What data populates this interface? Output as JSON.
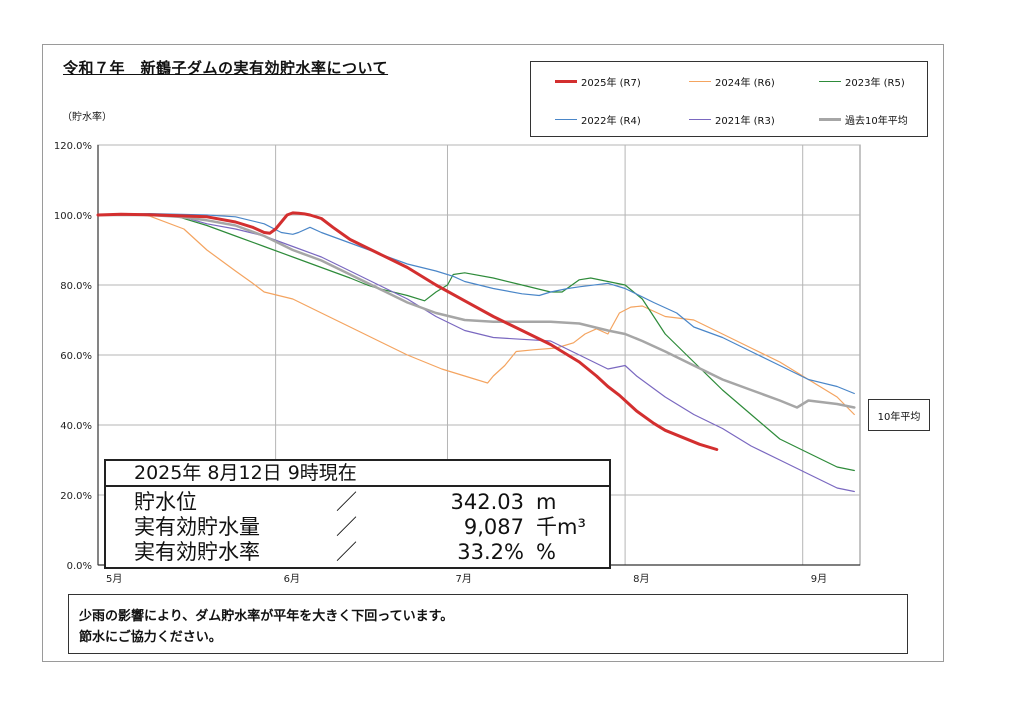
{
  "title": "令和７年　新鶴子ダムの実有効貯水率について",
  "y_unit_label": "（貯水率）",
  "legend": [
    {
      "label": "2025年 (R7)",
      "color": "#d32f2f",
      "width": 3
    },
    {
      "label": "2024年 (R6)",
      "color": "#f4a460",
      "width": 1.2
    },
    {
      "label": "2023年 (R5)",
      "color": "#2e8b3a",
      "width": 1.2
    },
    {
      "label": "2022年 (R4)",
      "color": "#4a86c8",
      "width": 1.2
    },
    {
      "label": "2021年 (R3)",
      "color": "#7a68c0",
      "width": 1.2
    },
    {
      "label": "過去10年平均",
      "color": "#a6a6a6",
      "width": 2.5
    }
  ],
  "avg_label": "10年平均",
  "info": {
    "date": "2025年 8月12日 9時現在",
    "rows": [
      {
        "key": "貯水位",
        "sep": "／",
        "value": "342.03",
        "unit": "m"
      },
      {
        "key": "実有効貯水量",
        "sep": "／",
        "value": "9,087",
        "unit": "千m³"
      },
      {
        "key": "実有効貯水率",
        "sep": "／",
        "value": "33.2%",
        "unit": "%"
      }
    ]
  },
  "note": [
    "少雨の影響により、ダム貯水率が平年を大きく下回っています。",
    "節水にご協力ください。"
  ],
  "chart_data": {
    "type": "line",
    "x_unit": "day of year",
    "xlim": [
      121,
      254
    ],
    "ylim": [
      0,
      120
    ],
    "yticks": [
      0,
      20,
      40,
      60,
      80,
      100,
      120
    ],
    "ytick_labels": [
      "0.0%",
      "20.0%",
      "40.0%",
      "60.0%",
      "80.0%",
      "100.0%",
      "120.0%"
    ],
    "xticks": [
      {
        "x": 121,
        "label": "5月"
      },
      {
        "x": 152,
        "label": "6月"
      },
      {
        "x": 182,
        "label": "7月"
      },
      {
        "x": 213,
        "label": "8月"
      },
      {
        "x": 244,
        "label": "9月"
      }
    ],
    "grid": true,
    "series": [
      {
        "name": "2024年 (R6)",
        "color": "#f4a460",
        "width": 1.2,
        "x": [
          121,
          127,
          130,
          136,
          140,
          145,
          148,
          150,
          155,
          160,
          165,
          170,
          175,
          178,
          181,
          185,
          187,
          189,
          190,
          192,
          194,
          197,
          201,
          204,
          206,
          208,
          210,
          212,
          214,
          216,
          220,
          225,
          230,
          235,
          240,
          245,
          250,
          253
        ],
        "y": [
          100,
          100.3,
          99.7,
          96,
          90,
          84,
          80.5,
          78,
          76,
          72,
          68,
          64,
          60,
          58,
          56,
          54,
          53,
          52,
          54,
          57,
          61,
          61.5,
          62,
          63.5,
          66,
          67.5,
          66,
          72,
          73.7,
          74,
          71,
          70,
          66,
          62,
          58,
          53,
          48,
          43
        ]
      },
      {
        "name": "2023年 (R5)",
        "color": "#2e8b3a",
        "width": 1.2,
        "x": [
          121,
          125,
          130,
          135,
          140,
          145,
          150,
          155,
          160,
          165,
          168,
          170,
          175,
          178,
          180,
          182,
          183,
          185,
          190,
          195,
          200,
          202,
          205,
          207,
          210,
          213,
          216,
          220,
          225,
          230,
          235,
          240,
          245,
          250,
          253
        ],
        "y": [
          100,
          100.3,
          100,
          99.5,
          97,
          94,
          91,
          88,
          85,
          82,
          80,
          79,
          77,
          75.5,
          78,
          80,
          83,
          83.5,
          82,
          80,
          78,
          78,
          81.5,
          82,
          81,
          80,
          76,
          66,
          58,
          50,
          43,
          36,
          32,
          28,
          27
        ]
      },
      {
        "name": "2022年 (R4)",
        "color": "#4a86c8",
        "width": 1.2,
        "x": [
          121,
          130,
          140,
          145,
          150,
          153,
          155,
          156,
          158,
          160,
          165,
          170,
          175,
          180,
          183,
          185,
          190,
          195,
          198,
          200,
          203,
          205,
          210,
          213,
          218,
          222,
          225,
          230,
          235,
          240,
          245,
          250,
          253
        ],
        "y": [
          100,
          100.4,
          100,
          99.5,
          97.5,
          95,
          94.5,
          95,
          96.5,
          95,
          92,
          89,
          86,
          84,
          82.5,
          81,
          79,
          77.5,
          77,
          78,
          79,
          79.5,
          80.5,
          79,
          75,
          72,
          68,
          65,
          61,
          57,
          53,
          51,
          49
        ]
      },
      {
        "name": "2021年 (R3)",
        "color": "#7a68c0",
        "width": 1.2,
        "x": [
          121,
          130,
          135,
          140,
          145,
          150,
          155,
          160,
          165,
          170,
          175,
          180,
          185,
          190,
          195,
          200,
          205,
          210,
          213,
          215,
          220,
          225,
          230,
          235,
          240,
          245,
          250,
          253
        ],
        "y": [
          100,
          100.2,
          99.8,
          97.5,
          96,
          94,
          91,
          88,
          84,
          80,
          76,
          71,
          67,
          65,
          64.5,
          64,
          60,
          56,
          57,
          54,
          48,
          43,
          39,
          34,
          30,
          26,
          22,
          21
        ]
      },
      {
        "name": "過去10年平均",
        "color": "#a6a6a6",
        "width": 2.5,
        "x": [
          121,
          130,
          135,
          140,
          145,
          150,
          155,
          160,
          165,
          170,
          175,
          180,
          185,
          190,
          195,
          200,
          205,
          210,
          213,
          216,
          220,
          225,
          230,
          235,
          240,
          243,
          245,
          250,
          253
        ],
        "y": [
          100,
          100,
          99.5,
          98.5,
          97,
          94,
          90,
          87,
          83,
          79,
          75,
          72,
          70,
          69.5,
          69.5,
          69.5,
          69,
          67,
          66,
          64,
          61,
          57,
          53,
          50,
          47,
          45,
          47,
          46,
          45
        ]
      },
      {
        "name": "2025年 (R7)",
        "color": "#d32f2f",
        "width": 3,
        "x": [
          121,
          125,
          130,
          135,
          140,
          145,
          148,
          150,
          151,
          152,
          154,
          155,
          156,
          157,
          158,
          160,
          162,
          165,
          170,
          175,
          180,
          185,
          190,
          195,
          200,
          205,
          208,
          210,
          212,
          215,
          218,
          220,
          223,
          226,
          229
        ],
        "y": [
          100,
          100.2,
          100.1,
          99.8,
          99.5,
          98,
          96.5,
          95,
          94.8,
          96,
          100,
          100.6,
          100.5,
          100.3,
          100,
          99,
          96.5,
          93,
          89,
          85,
          80,
          75.5,
          71,
          67,
          63,
          58,
          54,
          51,
          48.5,
          44,
          40.5,
          38.5,
          36.5,
          34.5,
          33
        ]
      }
    ]
  }
}
